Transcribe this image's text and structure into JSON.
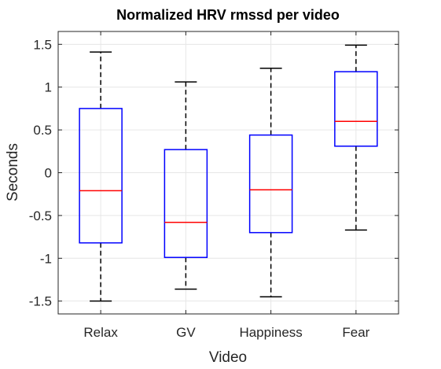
{
  "chart_data": {
    "type": "boxplot",
    "title": "Normalized HRV rmssd per video",
    "xlabel": "Video",
    "ylabel": "Seconds",
    "ylim": [
      -1.65,
      1.65
    ],
    "yticks": [
      -1.5,
      -1,
      -0.5,
      0,
      0.5,
      1,
      1.5
    ],
    "ytick_labels": [
      "-1.5",
      "-1",
      "-0.5",
      "0",
      "0.5",
      "1",
      "1.5"
    ],
    "grid": true,
    "colors": {
      "box": "#0000ff",
      "median": "#ff0000",
      "whisker": "#000000",
      "grid": "#e6e6e6"
    },
    "categories": [
      "Relax",
      "GV",
      "Happiness",
      "Fear"
    ],
    "boxes": [
      {
        "min": -1.5,
        "q1": -0.82,
        "median": -0.21,
        "q3": 0.75,
        "max": 1.41
      },
      {
        "min": -1.36,
        "q1": -0.99,
        "median": -0.58,
        "q3": 0.27,
        "max": 1.06
      },
      {
        "min": -1.45,
        "q1": -0.7,
        "median": -0.2,
        "q3": 0.44,
        "max": 1.22
      },
      {
        "min": -0.67,
        "q1": 0.31,
        "median": 0.6,
        "q3": 1.18,
        "max": 1.49
      }
    ]
  }
}
